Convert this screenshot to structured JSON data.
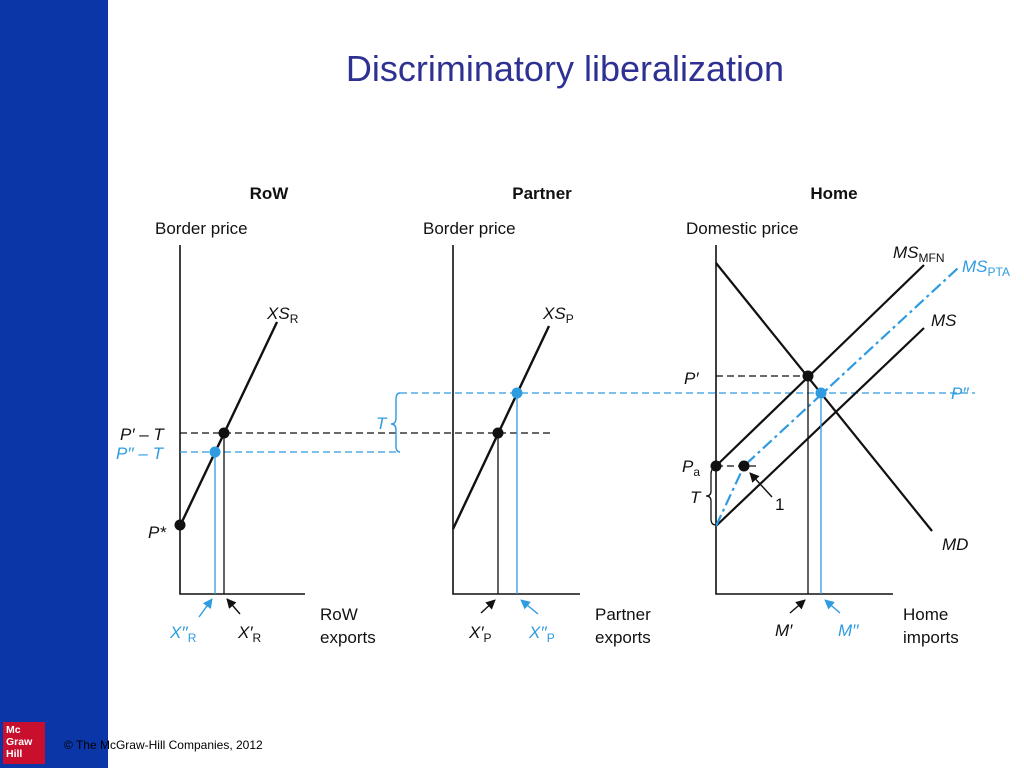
{
  "slide": {
    "title": "Discriminatory liberalization",
    "copyright": "© The McGraw-Hill Companies, 2012",
    "logo_lines": [
      "Mc",
      "Graw",
      "Hill"
    ]
  },
  "colors": {
    "sidebar": "#0a36a8",
    "title": "#2e3192",
    "accent_blue": "#2f9be0",
    "logo": "#c8102e"
  },
  "panels": {
    "row": {
      "heading": "RoW",
      "y_axis": "Border price",
      "x_axis_1": "RoW",
      "x_axis_2": "exports"
    },
    "partner": {
      "heading": "Partner",
      "y_axis": "Border price",
      "x_axis_1": "Partner",
      "x_axis_2": "exports"
    },
    "home": {
      "heading": "Home",
      "y_axis": "Domestic price",
      "x_axis_1": "Home",
      "x_axis_2": "imports"
    }
  },
  "labels": {
    "xs_r": "XS",
    "xs_r_sub": "R",
    "xs_p": "XS",
    "xs_p_sub": "P",
    "p_minus_t": "P′ – T",
    "pp_minus_t": "P′′ – T",
    "p_star": "P*",
    "t_row": "T",
    "x_r_pp": "X′′",
    "x_r_pp_sub": "R",
    "x_r_p": "X′",
    "x_r_p_sub": "R",
    "x_p_p": "X′",
    "x_p_p_sub": "P",
    "x_p_pp": "X′′",
    "x_p_pp_sub": "P",
    "ms_mfn": "MS",
    "ms_mfn_sub": "MFN",
    "ms_pta": "MS",
    "ms_pta_sub": "PTA",
    "ms": "MS",
    "md": "MD",
    "p_prime": "P′",
    "p_dprime": "P′′",
    "pa": "P",
    "pa_sub": "a",
    "t_home": "T",
    "one": "1",
    "m_p": "M′",
    "m_pp": "M′′"
  }
}
